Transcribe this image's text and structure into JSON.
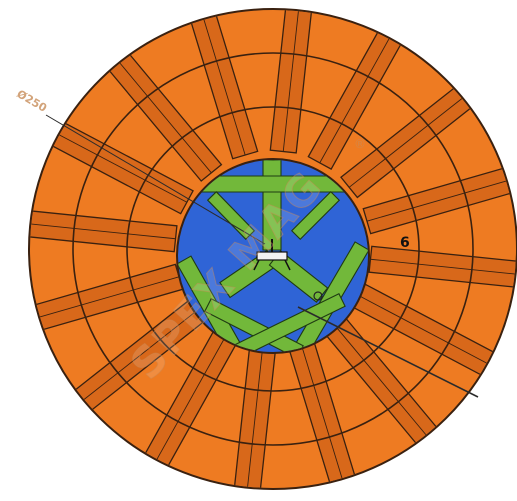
{
  "diagram": {
    "colors": {
      "outer_fill": "#ee7b22",
      "band_fill": "#d8681a",
      "line": "#3a2110",
      "hub_fill": "#2f64d6",
      "strap_fill": "#72b83a",
      "strap_line": "#1f3b12",
      "leader_line": "#2b2b2b"
    },
    "annotations": {
      "dimension_text": "Ø250",
      "marker_text": "6"
    },
    "watermark": {
      "text": "SPEX MAG",
      "trademark": "®"
    },
    "icons": {
      "center_clamp": "clamp-icon"
    }
  }
}
